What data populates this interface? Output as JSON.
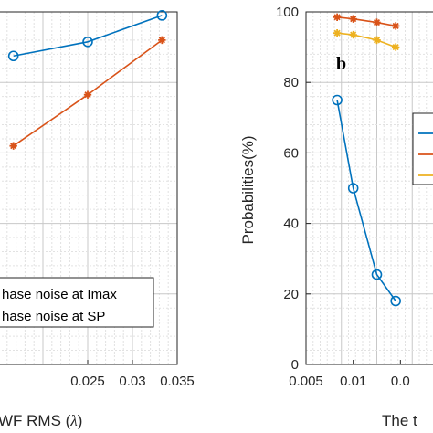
{
  "chart_data": [
    {
      "type": "line",
      "panel": "a",
      "xlabel": "WF RMS (λ)",
      "xlabel_visible": "WF RMS (",
      "xlabel_symbol": "λ",
      "xlabel_close": ")",
      "xlim": [
        0.015,
        0.035
      ],
      "xticks": [
        "0.025",
        "0.03",
        "0.035"
      ],
      "ylim": [
        0,
        1
      ],
      "grid": true,
      "legend_position": "bottom-right",
      "series": [
        {
          "name": "hase noise at Imax",
          "color": "#0072BD",
          "marker": "circle",
          "x": [
            0.0167,
            0.025,
            0.0333
          ],
          "y": [
            0.875,
            0.915,
            0.99
          ]
        },
        {
          "name": "hase noise at SP",
          "color": "#D95319",
          "marker": "star",
          "x": [
            0.0167,
            0.025,
            0.0333
          ],
          "y": [
            0.62,
            0.765,
            0.92
          ]
        }
      ]
    },
    {
      "type": "line",
      "panel": "b",
      "panel_label": "b",
      "ylabel": "Probabilities(%)",
      "xlabel_visible": "The t",
      "xlim": [
        0.005,
        0.02
      ],
      "xticks": [
        "0.005",
        "0.01",
        "0.0"
      ],
      "ylim": [
        0,
        100
      ],
      "yticks": [
        "0",
        "20",
        "40",
        "60",
        "80",
        "100"
      ],
      "grid": true,
      "legend_position": "right",
      "series": [
        {
          "color": "#0072BD",
          "marker": "circle",
          "x": [
            0.0083,
            0.01,
            0.0125,
            0.0145
          ],
          "y": [
            75,
            50,
            25.5,
            18
          ]
        },
        {
          "color": "#D95319",
          "marker": "star",
          "x": [
            0.0083,
            0.01,
            0.0125,
            0.0145
          ],
          "y": [
            98.5,
            98,
            97,
            96
          ]
        },
        {
          "color": "#EDB120",
          "marker": "star",
          "x": [
            0.0083,
            0.01,
            0.0125,
            0.0145
          ],
          "y": [
            94,
            93.5,
            92,
            90
          ]
        }
      ]
    }
  ]
}
